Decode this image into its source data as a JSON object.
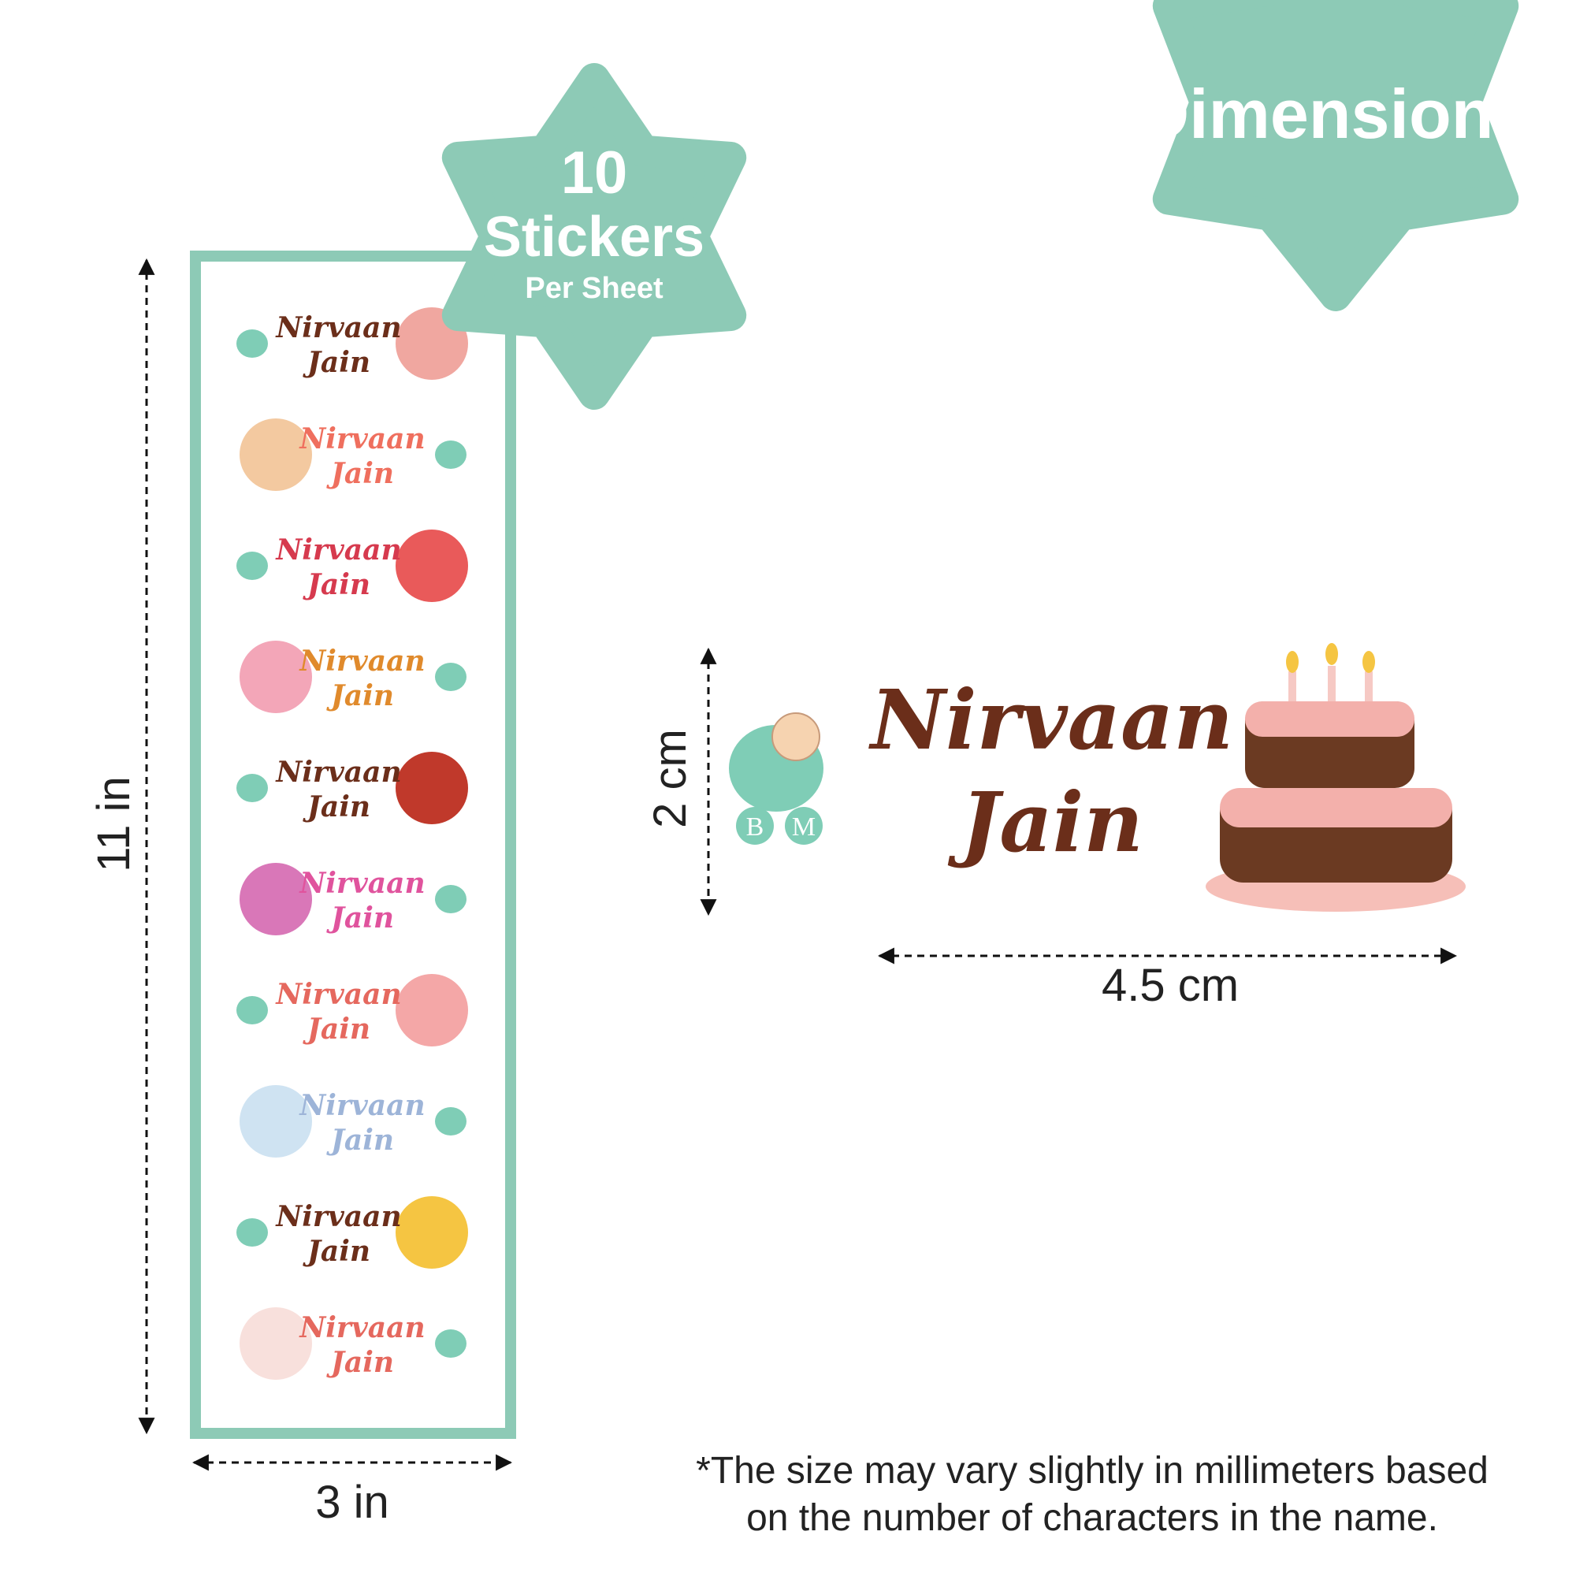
{
  "badge": {
    "title": "Dimensions"
  },
  "sheet_badge": {
    "count": "10",
    "label": "Stickers",
    "sublabel": "Per Sheet"
  },
  "logo": {
    "left": "B",
    "right": "M"
  },
  "stickers": [
    {
      "line1": "Nirvaan",
      "line2": "Jain"
    },
    {
      "line1": "Nirvaan",
      "line2": "Jain"
    },
    {
      "line1": "Nirvaan",
      "line2": "Jain"
    },
    {
      "line1": "Nirvaan",
      "line2": "Jain"
    },
    {
      "line1": "Nirvaan",
      "line2": "Jain"
    },
    {
      "line1": "Nirvaan",
      "line2": "Jain"
    },
    {
      "line1": "Nirvaan",
      "line2": "Jain"
    },
    {
      "line1": "Nirvaan",
      "line2": "Jain"
    },
    {
      "line1": "Nirvaan",
      "line2": "Jain"
    },
    {
      "line1": "Nirvaan",
      "line2": "Jain"
    }
  ],
  "sheet_height": "11 in",
  "sheet_width": "3 in",
  "sample": {
    "line1": "Nirvaan",
    "line2": "Jain",
    "height": "2 cm",
    "width": "4.5 cm"
  },
  "note": {
    "line1": "*The size may vary slightly in millimeters based",
    "line2": "on the number of characters in the name."
  }
}
